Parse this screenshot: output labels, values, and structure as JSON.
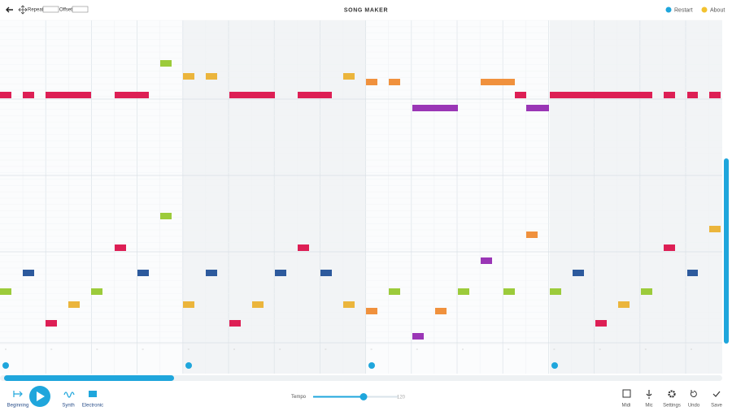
{
  "header": {
    "repeat_label": "Repeat",
    "offset_label": "Offset",
    "title": "SONG MAKER",
    "restart": "Restart",
    "about": "About"
  },
  "footer": {
    "beginning": "Beginning",
    "synth": "Synth",
    "electronic": "Electronic",
    "tempo_label": "Tempo",
    "tempo_value": "120",
    "midi": "Midi",
    "mic": "Mic",
    "settings": "Settings",
    "undo": "Undo",
    "save": "Save"
  }
}
